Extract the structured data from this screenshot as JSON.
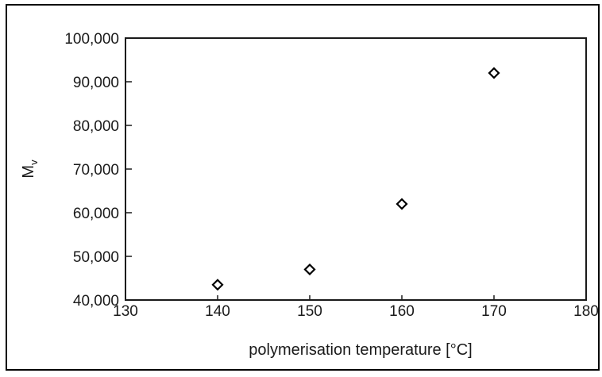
{
  "chart_data": {
    "type": "scatter",
    "marker": "open-diamond",
    "xlabel": "polymerisation temperature [°C]",
    "ylabel_main": "M",
    "ylabel_sub": "v",
    "xlim": [
      130,
      180
    ],
    "ylim": [
      40000,
      100000
    ],
    "x_ticks": [
      130,
      140,
      150,
      160,
      170,
      180
    ],
    "x_tick_labels": [
      "130",
      "140",
      "150",
      "160",
      "170",
      "180"
    ],
    "y_ticks": [
      40000,
      50000,
      60000,
      70000,
      80000,
      90000,
      100000
    ],
    "y_tick_labels": [
      "40,000",
      "50,000",
      "60,000",
      "70,000",
      "80,000",
      "90,000",
      "100,000"
    ],
    "grid": false,
    "points": [
      {
        "x": 140,
        "y": 43500
      },
      {
        "x": 150,
        "y": 47000
      },
      {
        "x": 160,
        "y": 62000
      },
      {
        "x": 170,
        "y": 92000
      }
    ]
  }
}
